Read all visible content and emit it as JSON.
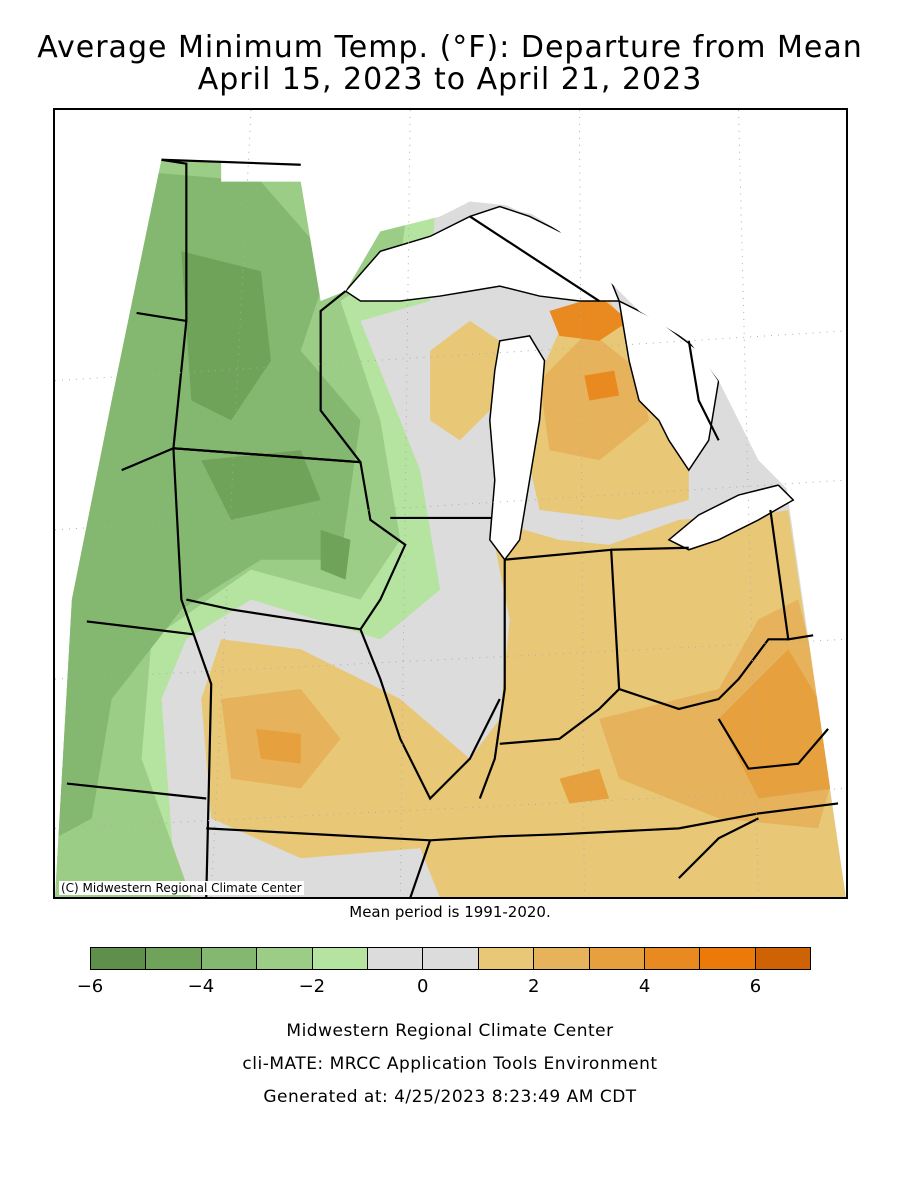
{
  "map": {
    "title_line1": "Average Minimum Temp. (°F): Departure from Mean",
    "title_line2": "April 15, 2023 to April 21, 2023",
    "copyright": "(C) Midwestern Regional Climate Center",
    "mean_period": "Mean period is 1991-2020."
  },
  "legend": {
    "swatches": [
      {
        "color": "#5e8f4b"
      },
      {
        "color": "#6fa35a"
      },
      {
        "color": "#84b870"
      },
      {
        "color": "#9ccd87"
      },
      {
        "color": "#b5e3a0"
      },
      {
        "color": "#dcdcdc"
      },
      {
        "color": "#dcdcdc"
      },
      {
        "color": "#e8c877"
      },
      {
        "color": "#e6b35c"
      },
      {
        "color": "#e6a03e"
      },
      {
        "color": "#e88a20"
      },
      {
        "color": "#eb7a08"
      },
      {
        "color": "#cf6204"
      }
    ],
    "tick_labels": [
      "−6",
      "−4",
      "−2",
      "0",
      "2",
      "4",
      "6"
    ]
  },
  "footer": {
    "line1": "Midwestern Regional Climate Center",
    "line2": "cli-MATE: MRCC Application Tools Environment",
    "line3": "Generated at: 4/25/2023 8:23:49 AM CDT"
  }
}
